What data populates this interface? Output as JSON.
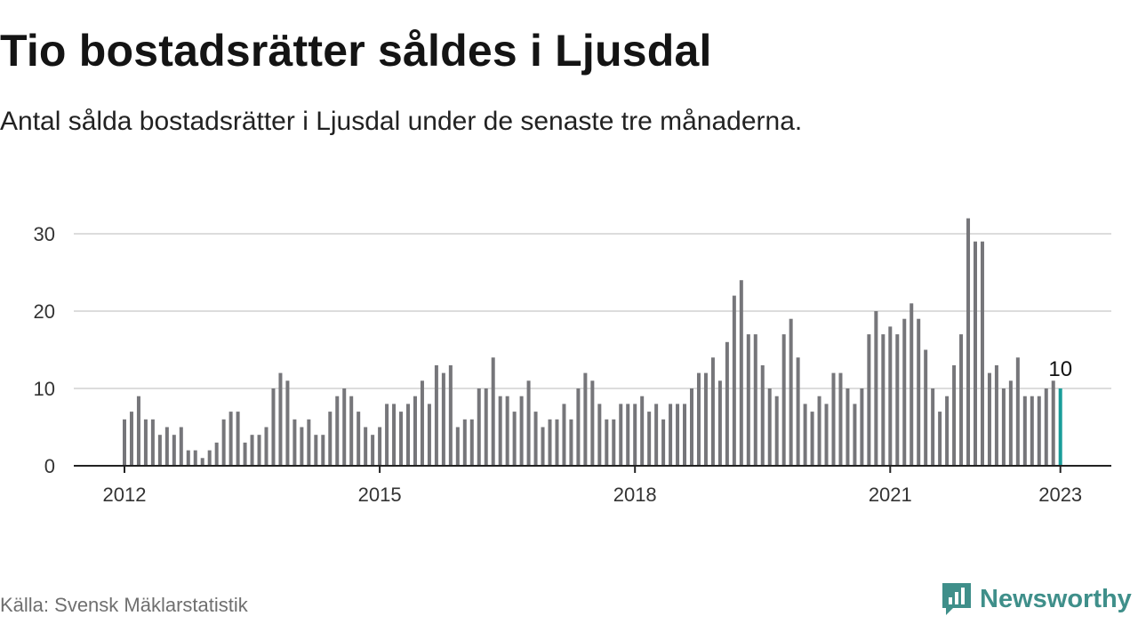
{
  "title": "Tio bostadsrätter såldes i Ljusdal",
  "subtitle": "Antal sålda bostadsrätter i Ljusdal under de senaste tre månaderna.",
  "source": "Källa: Svensk Mäklarstatistik",
  "brand": {
    "name": "Newsworthy",
    "icon": "newsworthy-logo-icon",
    "color": "#3f8f8a"
  },
  "chart_data": {
    "type": "bar",
    "start_month": "2012-01",
    "values": [
      6,
      7,
      9,
      6,
      6,
      4,
      5,
      4,
      5,
      2,
      2,
      1,
      2,
      3,
      6,
      7,
      7,
      3,
      4,
      4,
      5,
      10,
      12,
      11,
      6,
      5,
      6,
      4,
      4,
      7,
      9,
      10,
      9,
      7,
      5,
      4,
      5,
      8,
      8,
      7,
      8,
      9,
      11,
      8,
      13,
      12,
      13,
      5,
      6,
      6,
      10,
      10,
      14,
      9,
      9,
      7,
      9,
      11,
      7,
      5,
      6,
      6,
      8,
      6,
      10,
      12,
      11,
      8,
      6,
      6,
      8,
      8,
      8,
      9,
      7,
      8,
      6,
      8,
      8,
      8,
      10,
      12,
      12,
      14,
      11,
      16,
      22,
      24,
      17,
      17,
      13,
      10,
      9,
      17,
      19,
      14,
      8,
      7,
      9,
      8,
      12,
      12,
      10,
      8,
      10,
      17,
      20,
      17,
      18,
      17,
      19,
      21,
      19,
      15,
      10,
      7,
      9,
      13,
      17,
      32,
      29,
      29,
      12,
      13,
      10,
      11,
      14,
      9,
      9,
      9,
      10,
      11,
      10
    ],
    "x_ticks": [
      "2012",
      "2015",
      "2018",
      "2021",
      "2023"
    ],
    "y_ticks": [
      0,
      10,
      20,
      30
    ],
    "ylim": [
      0,
      33
    ],
    "highlight_label": "10",
    "bar_color": "#76767a",
    "highlight_color": "#1a9d9a",
    "grid": true
  }
}
